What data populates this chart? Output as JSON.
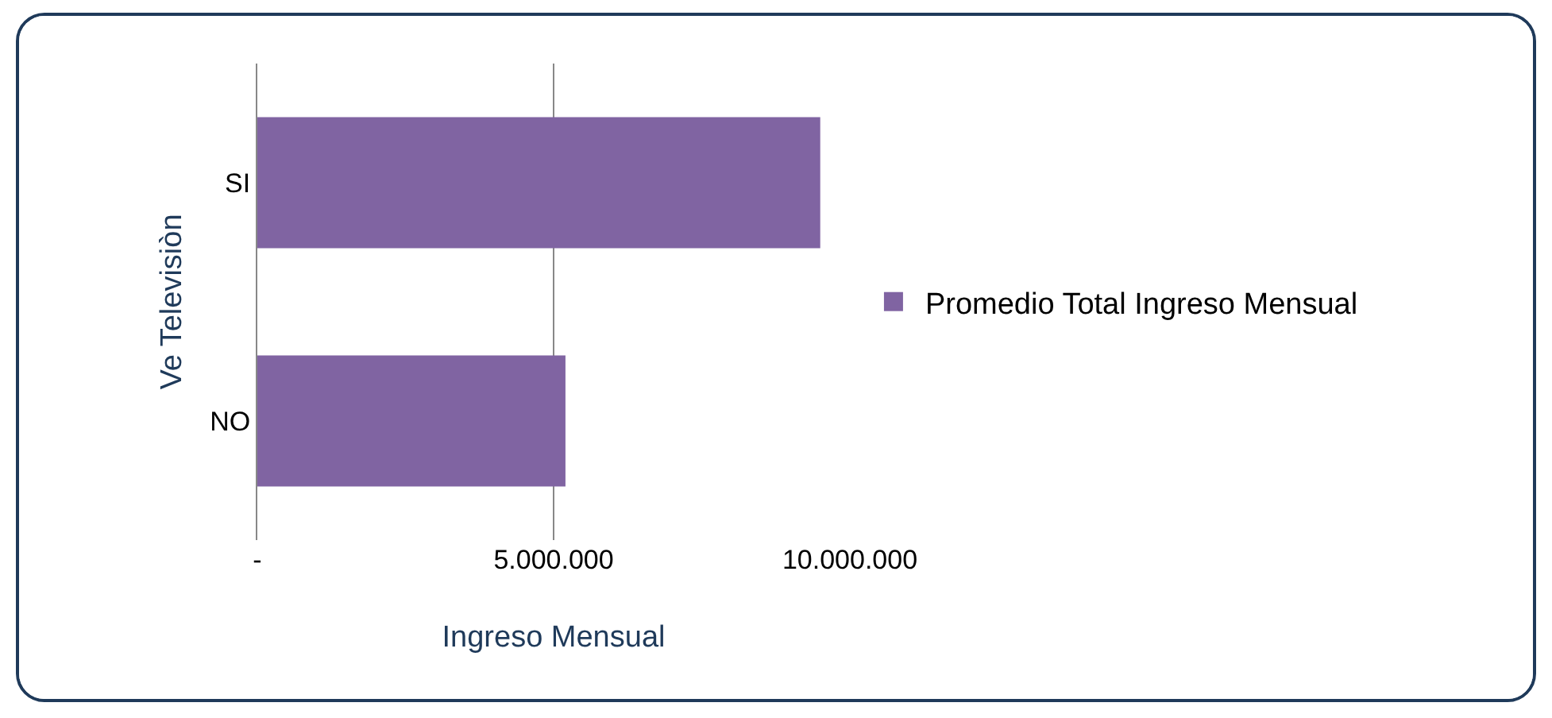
{
  "chart_data": {
    "type": "bar",
    "orientation": "horizontal",
    "xlabel": "Ingreso Mensual",
    "ylabel": "Ve Televisiòn",
    "categories": [
      "SI",
      "NO"
    ],
    "series": [
      {
        "name": "Promedio Total Ingreso Mensual",
        "color": "#8064a2",
        "values": [
          9500000,
          5200000
        ]
      }
    ],
    "xlim": [
      0,
      10000000
    ],
    "xticks": [
      {
        "value": 0,
        "label": "-"
      },
      {
        "value": 5000000,
        "label": "5.000.000"
      },
      {
        "value": 10000000,
        "label": "10.000.000"
      }
    ],
    "grid": "x",
    "legend": "right"
  }
}
